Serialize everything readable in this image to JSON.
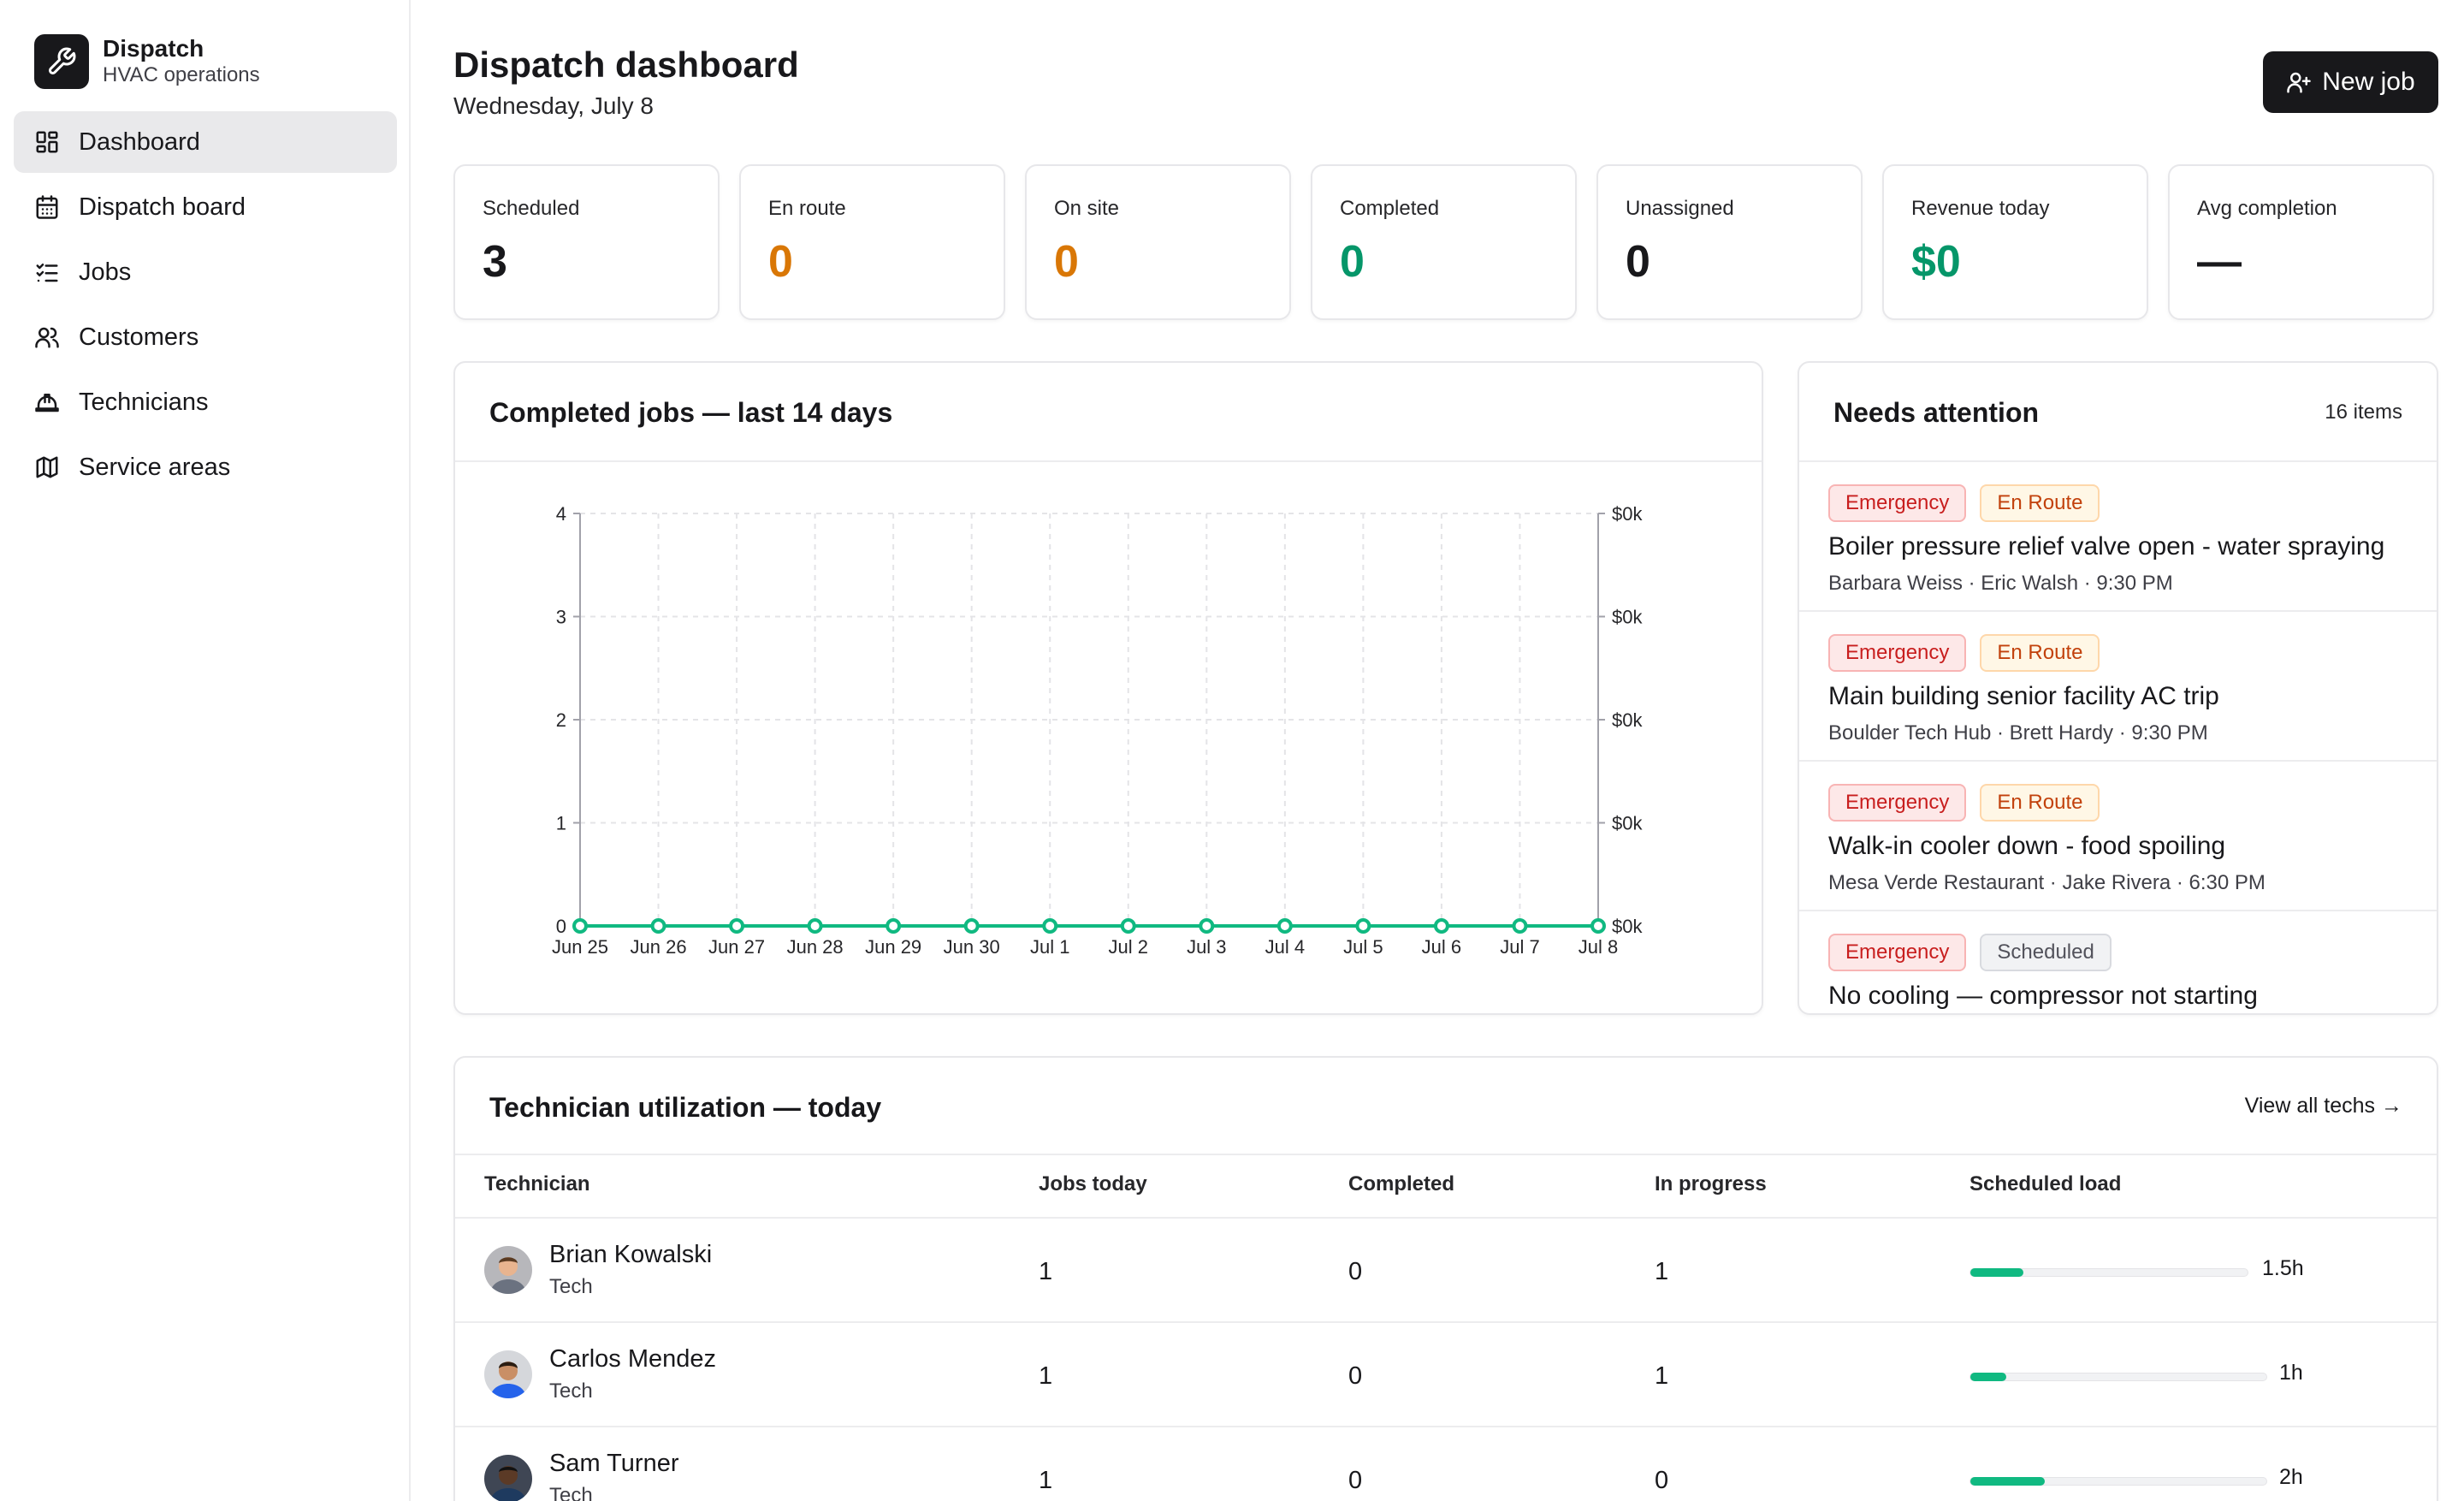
{
  "brand": {
    "title": "Dispatch",
    "subtitle": "HVAC operations",
    "logo_icon": "wrench-icon"
  },
  "nav": [
    {
      "label": "Dashboard",
      "icon": "dashboard-icon",
      "active": true
    },
    {
      "label": "Dispatch board",
      "icon": "calendar-icon",
      "active": false
    },
    {
      "label": "Jobs",
      "icon": "list-check-icon",
      "active": false
    },
    {
      "label": "Customers",
      "icon": "users-icon",
      "active": false
    },
    {
      "label": "Technicians",
      "icon": "hard-hat-icon",
      "active": false
    },
    {
      "label": "Service areas",
      "icon": "map-icon",
      "active": false
    }
  ],
  "header": {
    "title": "Dispatch dashboard",
    "date": "Wednesday, July 8",
    "new_job_label": "New job"
  },
  "stats": [
    {
      "label": "Scheduled",
      "value": "3",
      "color": "#18181b"
    },
    {
      "label": "En route",
      "value": "0",
      "color": "#d97706"
    },
    {
      "label": "On site",
      "value": "0",
      "color": "#d97706"
    },
    {
      "label": "Completed",
      "value": "0",
      "color": "#059669"
    },
    {
      "label": "Unassigned",
      "value": "0",
      "color": "#18181b"
    },
    {
      "label": "Revenue today",
      "value": "$0",
      "color": "#059669"
    },
    {
      "label": "Avg completion",
      "value": "—",
      "color": "#18181b"
    }
  ],
  "chart_card": {
    "title": "Completed jobs — last 14 days"
  },
  "chart_data": {
    "type": "line",
    "categories": [
      "Jun 25",
      "Jun 26",
      "Jun 27",
      "Jun 28",
      "Jun 29",
      "Jun 30",
      "Jul 1",
      "Jul 2",
      "Jul 3",
      "Jul 4",
      "Jul 5",
      "Jul 6",
      "Jul 7",
      "Jul 8"
    ],
    "series": [
      {
        "values": [
          0,
          0,
          0,
          0,
          0,
          0,
          0,
          0,
          0,
          0,
          0,
          0,
          0,
          0
        ],
        "color": "#10b981"
      }
    ],
    "ylim": [
      0,
      4
    ],
    "y_ticks": [
      "0",
      "1",
      "2",
      "3",
      "4"
    ],
    "y2_ticks": [
      "$0k",
      "$0k",
      "$0k",
      "$0k",
      "$0k"
    ],
    "grid": true
  },
  "attention": {
    "title": "Needs attention",
    "count_label": "16 items",
    "items": [
      {
        "badges": [
          {
            "text": "Emergency",
            "kind": "red"
          },
          {
            "text": "En Route",
            "kind": "amber"
          }
        ],
        "title": "Boiler pressure relief valve open - water spraying",
        "meta": "Barbara Weiss · Eric Walsh · 9:30 PM"
      },
      {
        "badges": [
          {
            "text": "Emergency",
            "kind": "red"
          },
          {
            "text": "En Route",
            "kind": "amber"
          }
        ],
        "title": "Main building senior facility AC trip",
        "meta": "Boulder Tech Hub · Brett Hardy · 9:30 PM"
      },
      {
        "badges": [
          {
            "text": "Emergency",
            "kind": "red"
          },
          {
            "text": "En Route",
            "kind": "amber"
          }
        ],
        "title": "Walk-in cooler down - food spoiling",
        "meta": "Mesa Verde Restaurant · Jake Rivera · 6:30 PM"
      },
      {
        "badges": [
          {
            "text": "Emergency",
            "kind": "red"
          },
          {
            "text": "Scheduled",
            "kind": "grey"
          }
        ],
        "title": "No cooling — compressor not starting",
        "meta": ""
      }
    ]
  },
  "utilization": {
    "title": "Technician utilization — today",
    "view_all": "View all techs →",
    "columns": [
      "Technician",
      "Jobs today",
      "Completed",
      "In progress",
      "Scheduled load"
    ],
    "rows": [
      {
        "name": "Brian Kowalski",
        "role": "Tech",
        "jobs": "1",
        "completed": "0",
        "in_progress": "1",
        "load": "1.5h",
        "load_fraction": 0.19,
        "avatar": "avatar-icon"
      },
      {
        "name": "Carlos Mendez",
        "role": "Tech",
        "jobs": "1",
        "completed": "0",
        "in_progress": "1",
        "load": "1h",
        "load_fraction": 0.12,
        "avatar": "avatar-icon"
      },
      {
        "name": "Sam Turner",
        "role": "Tech",
        "jobs": "1",
        "completed": "0",
        "in_progress": "0",
        "load": "2h",
        "load_fraction": 0.25,
        "avatar": "avatar-icon"
      }
    ]
  }
}
